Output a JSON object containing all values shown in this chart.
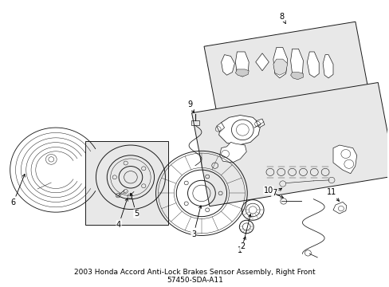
{
  "background_color": "#ffffff",
  "title": "2003 Honda Accord Anti-Lock Brakes Sensor Assembly, Right Front\n57450-SDA-A11",
  "title_fontsize": 6.5,
  "figure_width": 4.89,
  "figure_height": 3.6,
  "dpi": 100,
  "line_color": "#1a1a1a",
  "label_color": "#000000",
  "box_face": "#ececec"
}
